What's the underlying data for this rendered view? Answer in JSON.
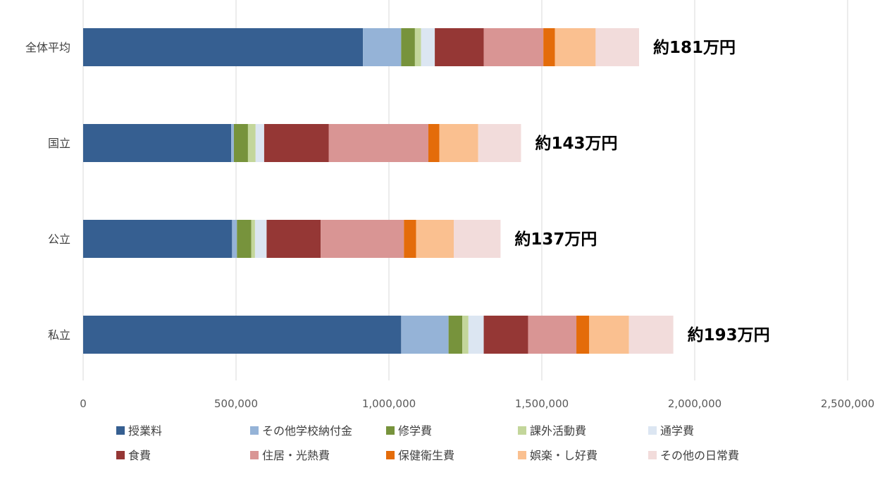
{
  "chart_data": {
    "type": "bar",
    "orientation": "horizontal",
    "stacked": true,
    "categories": [
      "全体平均",
      "国立",
      "公立",
      "私立"
    ],
    "series": [
      {
        "name": "授業料",
        "color": "#365F91",
        "values": [
          915000,
          484000,
          487000,
          1040000
        ]
      },
      {
        "name": "その他学校納付金",
        "color": "#95B3D7",
        "values": [
          125000,
          9000,
          16000,
          155000
        ]
      },
      {
        "name": "修学費",
        "color": "#77933C",
        "values": [
          45000,
          46000,
          47000,
          45000
        ]
      },
      {
        "name": "課外活動費",
        "color": "#C3D69B",
        "values": [
          20000,
          25000,
          12000,
          20000
        ]
      },
      {
        "name": "通学費",
        "color": "#DCE6F2",
        "values": [
          45000,
          28000,
          38000,
          50000
        ]
      },
      {
        "name": "食費",
        "color": "#953735",
        "values": [
          160000,
          211000,
          177000,
          145000
        ]
      },
      {
        "name": "住居・光熱費",
        "color": "#D99594",
        "values": [
          195000,
          326000,
          272000,
          158000
        ]
      },
      {
        "name": "保健衛生費",
        "color": "#E46C0A",
        "values": [
          38000,
          36000,
          40000,
          42000
        ]
      },
      {
        "name": "娯楽・し好費",
        "color": "#FAC090",
        "values": [
          133000,
          127000,
          123000,
          130000
        ]
      },
      {
        "name": "その他の日常費",
        "color": "#F2DCDB",
        "values": [
          142000,
          140000,
          153000,
          145000
        ]
      }
    ],
    "totals": [
      "約181万円",
      "約143万円",
      "約137万円",
      "約193万円"
    ],
    "xlim": [
      0,
      2500000
    ],
    "xticks": [
      0,
      500000,
      1000000,
      1500000,
      2000000,
      2500000
    ],
    "xtick_labels": [
      "0",
      "500,000",
      "1,000,000",
      "1,500,000",
      "2,000,000",
      "2,500,000"
    ],
    "grid": "vertical",
    "legend_position": "bottom"
  }
}
